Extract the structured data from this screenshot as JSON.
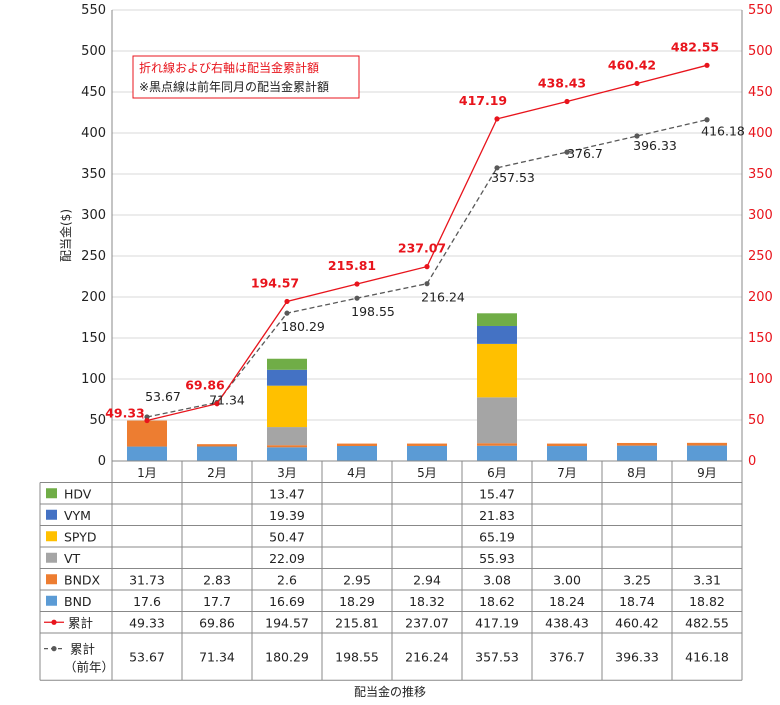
{
  "chart_data": {
    "type": "bar",
    "stacked": true,
    "categories": [
      "1月",
      "2月",
      "3月",
      "4月",
      "5月",
      "6月",
      "7月",
      "8月",
      "9月"
    ],
    "ylabel": "配当金($)",
    "ylim": [
      0,
      550
    ],
    "ytick_step": 50,
    "y2lim": [
      0,
      550
    ],
    "grid": true,
    "caption": "配当金の推移",
    "note_lines": [
      "折れ線および右軸は配当金累計額",
      "※黒点線は前年同月の配当金累計額"
    ],
    "series": [
      {
        "name": "BND",
        "color": "#5b9bd5",
        "values": [
          "17.6",
          "17.7",
          "16.69",
          "18.29",
          "18.32",
          "18.62",
          "18.24",
          "18.74",
          "18.82"
        ]
      },
      {
        "name": "BNDX",
        "color": "#ed7d31",
        "values": [
          "31.73",
          "2.83",
          "2.6",
          "2.95",
          "2.94",
          "3.08",
          "3.00",
          "3.25",
          "3.31"
        ]
      },
      {
        "name": "VT",
        "color": "#a5a5a5",
        "values": [
          "",
          "",
          "22.09",
          "",
          "",
          "55.93",
          "",
          "",
          ""
        ]
      },
      {
        "name": "SPYD",
        "color": "#ffc000",
        "values": [
          "",
          "",
          "50.47",
          "",
          "",
          "65.19",
          "",
          "",
          ""
        ]
      },
      {
        "name": "VYM",
        "color": "#4472c4",
        "values": [
          "",
          "",
          "19.39",
          "",
          "",
          "21.83",
          "",
          "",
          ""
        ]
      },
      {
        "name": "HDV",
        "color": "#70ad47",
        "values": [
          "",
          "",
          "13.47",
          "",
          "",
          "15.47",
          "",
          "",
          ""
        ]
      }
    ],
    "lines": [
      {
        "name": "累計",
        "color": "#e8141c",
        "values": [
          "49.33",
          "69.86",
          "194.57",
          "215.81",
          "237.07",
          "417.19",
          "438.43",
          "460.42",
          "482.55"
        ]
      },
      {
        "name": "累計（前年）",
        "color": "#595959",
        "dashed": true,
        "values": [
          "53.67",
          "71.34",
          "180.29",
          "198.55",
          "216.24",
          "357.53",
          "376.7",
          "396.33",
          "416.18"
        ]
      }
    ]
  }
}
